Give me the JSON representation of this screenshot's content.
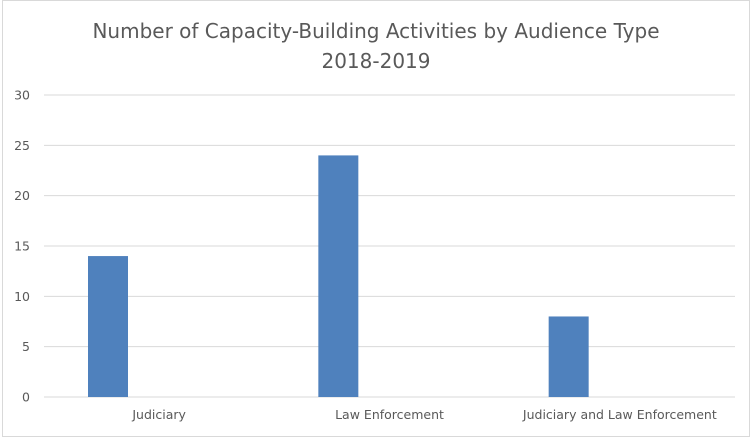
{
  "chart_data": {
    "type": "bar",
    "title": "Number of Capacity-Building Activities by Audience Type",
    "subtitle": "2018-2019",
    "categories": [
      "Judiciary",
      "Law Enforcement",
      "Judiciary and Law Enforcement"
    ],
    "values": [
      14,
      24,
      8
    ],
    "xlabel": "",
    "ylabel": "",
    "ylim": [
      0,
      30
    ],
    "yticks": [
      "0",
      "5",
      "10",
      "15",
      "20",
      "25",
      "30"
    ],
    "grid": true,
    "legend": "none",
    "colors": {
      "bar": "#4f81bd",
      "grid": "#d9d9d9",
      "text": "#595959"
    }
  }
}
